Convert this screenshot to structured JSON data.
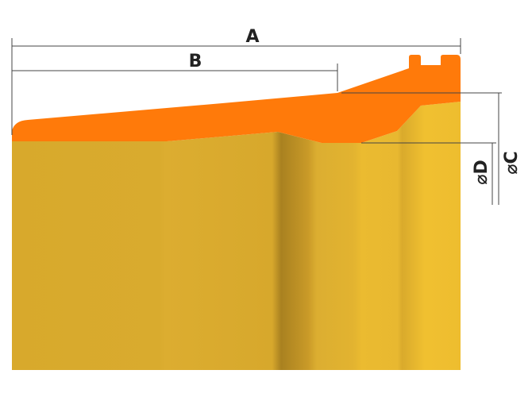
{
  "dimensions": {
    "a": "A",
    "b": "B",
    "c": "⌀C",
    "d": "⌀D"
  }
}
